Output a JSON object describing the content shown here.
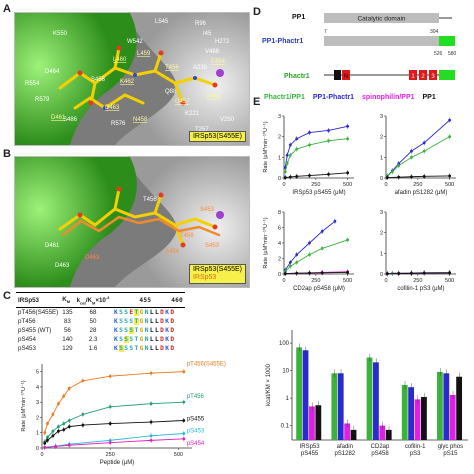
{
  "panels": {
    "A": "A",
    "B": "B",
    "C": "C",
    "D": "D",
    "E": "E"
  },
  "panel_a": {
    "residues": [
      "L545",
      "W542",
      "R96",
      "K550",
      "I45",
      "L460",
      "L459",
      "H272",
      "V488",
      "D464",
      "R554",
      "E454",
      "S458",
      "T456",
      "A230",
      "K462",
      "Q88",
      "E455",
      "D463",
      "D461",
      "N458",
      "G457",
      "K221",
      "T257",
      "V250",
      "R579",
      "S486",
      "R576"
    ],
    "underlined": [
      "L460",
      "L459",
      "E454",
      "T456",
      "K462",
      "E455",
      "D463",
      "D461",
      "N458",
      "G457"
    ],
    "caption": "IRSp53(S455E)"
  },
  "panel_b": {
    "residues": [
      "T456",
      "D461",
      "D463",
      "D463",
      "S453",
      "T456",
      "S453",
      "S454"
    ],
    "caption_1": "IRSp53(S455E)",
    "caption_2": "IRSp53"
  },
  "panel_c_table": {
    "headers": [
      "IRSp53",
      "K",
      "k /K ×10",
      "455",
      "460"
    ],
    "header_parts": {
      "km": "M",
      "kcat": "cat",
      "km2": "M",
      "exp": "-3"
    },
    "rows": [
      {
        "name": "pT456(S455E)",
        "km": "135",
        "ratio": "68",
        "seq": [
          "K",
          "S",
          "S",
          "E",
          "T",
          "G",
          "N",
          "L",
          "L",
          "D",
          "K",
          "D"
        ]
      },
      {
        "name": "pT456",
        "km": "83",
        "ratio": "50",
        "seq": [
          "K",
          "S",
          "S",
          "S",
          "T",
          "G",
          "N",
          "L",
          "L",
          "D",
          "K",
          "D"
        ]
      },
      {
        "name": "pS455 (WT)",
        "km": "56",
        "ratio": "28",
        "seq": [
          "K",
          "S",
          "S",
          "S",
          "T",
          "G",
          "N",
          "L",
          "L",
          "D",
          "K",
          "D"
        ]
      },
      {
        "name": "pS454",
        "km": "140",
        "ratio": "2.3",
        "seq": [
          "K",
          "S",
          "S",
          "S",
          "T",
          "G",
          "N",
          "L",
          "L",
          "D",
          "K",
          "D"
        ]
      },
      {
        "name": "pS453",
        "km": "129",
        "ratio": "1.6",
        "seq": [
          "K",
          "S",
          "S",
          "S",
          "T",
          "G",
          "N",
          "L",
          "L",
          "D",
          "K",
          "D"
        ]
      }
    ],
    "residue_colors": {
      "K": "#2a5bd7",
      "S": "#1fa7b5",
      "E": "#d62020",
      "T": "#1fa7b5",
      "G": "#d4a000",
      "N": "#1fa7b5",
      "L": "#111111",
      "D": "#d62020"
    },
    "highlight_bg": "#f3ee4a"
  },
  "panel_c_chart": {
    "ylabel": "Rate (μM*min⁻¹*U⁻¹)",
    "xlabel": "Peptide (μM)",
    "y_ticks": [
      "0",
      "1",
      "2",
      "3",
      "4",
      "5"
    ],
    "x_ticks": [
      "0",
      "250",
      "500"
    ]
  },
  "panel_d": {
    "rows": [
      {
        "label": "PP1",
        "color": "#111111",
        "domain": "Catalytic domain",
        "n1": "7",
        "n2": "304"
      },
      {
        "label": "PP1-Phactr1",
        "color": "#2a3cc0",
        "n1": "526",
        "n2": "580"
      },
      {
        "label": "Phactr1",
        "color": "#2aa02a",
        "rpel": [
          "N",
          "1",
          "2",
          "3"
        ]
      }
    ]
  },
  "panel_e": {
    "legend": [
      {
        "label": "Phactr1/PP1",
        "color": "#3bb33b"
      },
      {
        "label": "PP1-Phactr1",
        "color": "#2a2ad0"
      },
      {
        "label": "spinophilin/PP1",
        "color": "#e020e0"
      },
      {
        "label": "PP1",
        "color": "#111111"
      }
    ],
    "ylabel": "Rate (μM*min⁻¹*U⁻¹)",
    "bar_ylabel": "kcat/KM × 1000",
    "bar_y_ticks": [
      "0.1",
      "1",
      "10",
      "100"
    ],
    "bar_categories": [
      "IRSp53\npS455",
      "afadin\npS1282",
      "CD2ap\npS458",
      "cofilin-1\npS3",
      "glyc phos\npS15"
    ]
  },
  "chart_data": [
    {
      "type": "scatter",
      "xlabel": "Peptide (μM)",
      "ylabel": "Rate (μM*min⁻¹*U⁻¹)",
      "xlim": [
        0,
        550
      ],
      "ylim": [
        0,
        5.5
      ],
      "x_ticks": [
        0,
        250,
        500
      ],
      "y_ticks": [
        0,
        1,
        2,
        3,
        4,
        5
      ],
      "series": [
        {
          "name": "pT456(S455E)",
          "color": "#ee7a1e",
          "x": [
            10,
            20,
            40,
            60,
            80,
            100,
            150,
            250,
            400,
            520
          ],
          "y": [
            1.0,
            1.6,
            2.2,
            2.9,
            3.4,
            3.9,
            4.4,
            4.7,
            4.9,
            5.0
          ]
        },
        {
          "name": "pT456",
          "color": "#1f9f73",
          "x": [
            10,
            20,
            40,
            60,
            80,
            100,
            150,
            250,
            400,
            520
          ],
          "y": [
            0.4,
            0.7,
            1.1,
            1.4,
            1.6,
            1.8,
            2.2,
            2.7,
            2.9,
            3.0
          ]
        },
        {
          "name": "pS455",
          "color": "#111111",
          "x": [
            10,
            20,
            40,
            60,
            80,
            100,
            150,
            250,
            400,
            520
          ],
          "y": [
            0.3,
            0.5,
            0.8,
            1.1,
            1.2,
            1.4,
            1.5,
            1.6,
            1.7,
            1.8
          ]
        },
        {
          "name": "pS453",
          "color": "#27b9d6",
          "x": [
            10,
            50,
            100,
            250,
            400,
            520
          ],
          "y": [
            0.05,
            0.12,
            0.25,
            0.5,
            0.8,
            0.95
          ]
        },
        {
          "name": "pS454",
          "color": "#e020c0",
          "x": [
            10,
            50,
            100,
            250,
            400,
            520
          ],
          "y": [
            0.03,
            0.1,
            0.18,
            0.35,
            0.5,
            0.6
          ]
        }
      ]
    },
    {
      "type": "line",
      "xlabel": "IRSp53 pS455 (μM)",
      "ylabel": "Rate (μM*min⁻¹*U⁻¹)",
      "xlim": [
        0,
        550
      ],
      "ylim": [
        0,
        3
      ],
      "x_ticks": [
        0,
        250,
        500
      ],
      "y_ticks": [
        0,
        1,
        2,
        3
      ],
      "series": [
        {
          "name": "PP1-Phactr1",
          "color": "#2a2ad0",
          "x": [
            10,
            25,
            50,
            100,
            200,
            350,
            500
          ],
          "y": [
            0.5,
            1.1,
            1.6,
            1.9,
            2.2,
            2.3,
            2.5
          ]
        },
        {
          "name": "Phactr1/PP1",
          "color": "#3bb33b",
          "x": [
            10,
            25,
            50,
            100,
            200,
            350,
            500
          ],
          "y": [
            0.3,
            0.7,
            1.1,
            1.4,
            1.6,
            1.8,
            1.9
          ]
        },
        {
          "name": "PP1",
          "color": "#111111",
          "x": [
            10,
            50,
            100,
            200,
            350,
            500
          ],
          "y": [
            0.02,
            0.05,
            0.08,
            0.12,
            0.18,
            0.25
          ]
        }
      ]
    },
    {
      "type": "line",
      "xlabel": "afadin pS1282 (μM)",
      "xlim": [
        0,
        550
      ],
      "ylim": [
        0,
        3
      ],
      "x_ticks": [
        0,
        250,
        500
      ],
      "y_ticks": [
        0,
        1,
        2,
        3
      ],
      "series": [
        {
          "name": "PP1-Phactr1",
          "color": "#2a2ad0",
          "x": [
            10,
            50,
            100,
            200,
            300,
            500
          ],
          "y": [
            0.1,
            0.35,
            0.7,
            1.3,
            1.7,
            2.8
          ]
        },
        {
          "name": "Phactr1/PP1",
          "color": "#3bb33b",
          "x": [
            10,
            50,
            100,
            200,
            300,
            500
          ],
          "y": [
            0.1,
            0.3,
            0.6,
            1.0,
            1.3,
            2.0
          ]
        },
        {
          "name": "PP1",
          "color": "#111111",
          "x": [
            10,
            100,
            200,
            300,
            500
          ],
          "y": [
            0.02,
            0.04,
            0.06,
            0.08,
            0.1
          ]
        }
      ]
    },
    {
      "type": "line",
      "xlabel": "CD2ap pS458 (μM)",
      "ylabel": "Rate (μM*min⁻¹*U⁻¹)",
      "xlim": [
        0,
        550
      ],
      "ylim": [
        0,
        8
      ],
      "x_ticks": [
        0,
        250,
        500
      ],
      "y_ticks": [
        0,
        2,
        4,
        6,
        8
      ],
      "series": [
        {
          "name": "PP1-Phactr1",
          "color": "#2a2ad0",
          "x": [
            10,
            50,
            100,
            200,
            300,
            400
          ],
          "y": [
            0.5,
            1.5,
            2.5,
            4.0,
            5.5,
            6.8
          ]
        },
        {
          "name": "Phactr1/PP1",
          "color": "#3bb33b",
          "x": [
            10,
            50,
            100,
            200,
            300,
            500
          ],
          "y": [
            0.3,
            1.0,
            1.5,
            2.5,
            3.3,
            4.4
          ]
        },
        {
          "name": "spinophilin/PP1",
          "color": "#e020e0",
          "x": [
            10,
            100,
            200,
            300,
            500
          ],
          "y": [
            0.05,
            0.1,
            0.15,
            0.2,
            0.3
          ]
        },
        {
          "name": "PP1",
          "color": "#111111",
          "x": [
            10,
            100,
            200,
            300,
            500
          ],
          "y": [
            0.05,
            0.1,
            0.12,
            0.15,
            0.2
          ]
        }
      ]
    },
    {
      "type": "line",
      "xlabel": "cofilin-1 pS3 (μM)",
      "xlim": [
        0,
        550
      ],
      "ylim": [
        0,
        3
      ],
      "x_ticks": [
        0,
        250,
        500
      ],
      "y_ticks": [
        0,
        1,
        2,
        3
      ],
      "series": [
        {
          "name": "PP1-Phactr1",
          "color": "#2a2ad0",
          "x": [
            10,
            50,
            100,
            200,
            300,
            500
          ],
          "y": [
            0.02,
            0.03,
            0.04,
            0.05,
            0.06,
            0.07
          ]
        },
        {
          "name": "Phactr1/PP1",
          "color": "#3bb33b",
          "x": [
            10,
            50,
            100,
            200,
            300,
            500
          ],
          "y": [
            0.02,
            0.03,
            0.04,
            0.05,
            0.06,
            0.07
          ]
        },
        {
          "name": "spinophilin/PP1",
          "color": "#e020e0",
          "x": [
            10,
            100,
            200,
            300,
            500
          ],
          "y": [
            0.02,
            0.03,
            0.04,
            0.05,
            0.06
          ]
        },
        {
          "name": "PP1",
          "color": "#111111",
          "x": [
            10,
            100,
            200,
            300,
            500
          ],
          "y": [
            0.01,
            0.02,
            0.03,
            0.04,
            0.05
          ]
        }
      ]
    },
    {
      "type": "bar",
      "ylabel": "kcat/KM × 1000",
      "yscale": "log",
      "ylim": [
        0.03,
        300
      ],
      "y_ticks": [
        0.1,
        1,
        10,
        100
      ],
      "categories": [
        "IRSp53 pS455",
        "afadin pS1282",
        "CD2ap pS458",
        "cofilin-1 pS3",
        "glyc phos pS15"
      ],
      "series": [
        {
          "name": "Phactr1/PP1",
          "color": "#3bb33b",
          "values": [
            70,
            8,
            30,
            3,
            9
          ]
        },
        {
          "name": "PP1-Phactr1",
          "color": "#2a2ad0",
          "values": [
            55,
            8,
            20,
            2.5,
            8
          ]
        },
        {
          "name": "spinophilin/PP1",
          "color": "#e020e0",
          "values": [
            0.5,
            0.12,
            0.1,
            0.9,
            1.3
          ]
        },
        {
          "name": "PP1",
          "color": "#111111",
          "values": [
            0.55,
            0.07,
            0.07,
            1.1,
            6
          ]
        }
      ]
    }
  ]
}
